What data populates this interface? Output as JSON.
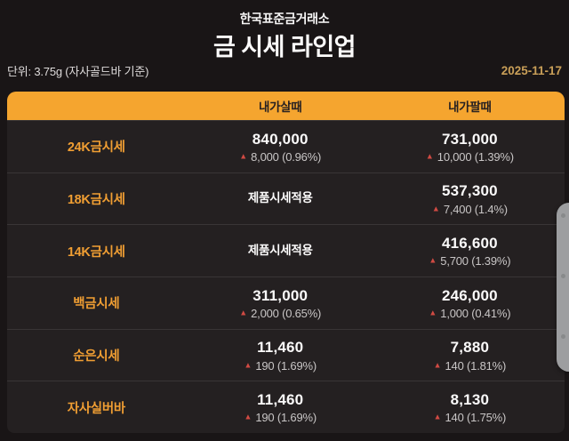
{
  "page": {
    "org_name": "한국표준금거래소",
    "title": "금 시세 라인업",
    "unit_label": "단위: 3.75g (자사골드바 기준)",
    "date": "2025-11-17"
  },
  "colors": {
    "background": "#191516",
    "panel": "#242021",
    "header_orange": "#f5a52f",
    "label_orange": "#f09e33",
    "up_red": "#d14a43",
    "date_gold": "#c99f58",
    "value_white": "#fbfafa",
    "change_gray": "#c9c6c6"
  },
  "table": {
    "columns": [
      "",
      "내가살때",
      "내가팔때"
    ],
    "rows": [
      {
        "name": "24K금시세",
        "buy": {
          "value": "840,000",
          "change": "8,000 (0.96%)",
          "direction": "up"
        },
        "sell": {
          "value": "731,000",
          "change": "10,000 (1.39%)",
          "direction": "up"
        }
      },
      {
        "name": "18K금시세",
        "buy": {
          "value": "제품시세적용",
          "change": "",
          "direction": ""
        },
        "sell": {
          "value": "537,300",
          "change": "7,400 (1.4%)",
          "direction": "up"
        }
      },
      {
        "name": "14K금시세",
        "buy": {
          "value": "제품시세적용",
          "change": "",
          "direction": ""
        },
        "sell": {
          "value": "416,600",
          "change": "5,700 (1.39%)",
          "direction": "up"
        }
      },
      {
        "name": "백금시세",
        "buy": {
          "value": "311,000",
          "change": "2,000 (0.65%)",
          "direction": "up"
        },
        "sell": {
          "value": "246,000",
          "change": "1,000 (0.41%)",
          "direction": "up"
        }
      },
      {
        "name": "순은시세",
        "buy": {
          "value": "11,460",
          "change": "190 (1.69%)",
          "direction": "up"
        },
        "sell": {
          "value": "7,880",
          "change": "140 (1.81%)",
          "direction": "up"
        }
      },
      {
        "name": "자사실버바",
        "buy": {
          "value": "11,460",
          "change": "190 (1.69%)",
          "direction": "up"
        },
        "sell": {
          "value": "8,130",
          "change": "140 (1.75%)",
          "direction": "up"
        }
      }
    ]
  },
  "icons": {
    "up_arrow": "▲"
  }
}
